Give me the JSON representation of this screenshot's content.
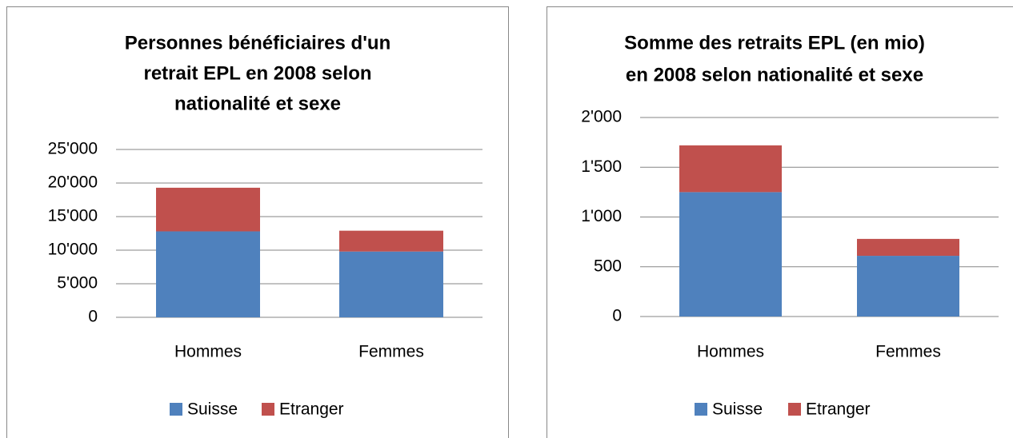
{
  "chart_data": [
    {
      "type": "bar",
      "stacked": true,
      "title": [
        "Personnes bénéficiaires d'un",
        "retrait EPL en 2008 selon",
        "nationalité et sexe"
      ],
      "categories": [
        "Hommes",
        "Femmes"
      ],
      "series": [
        {
          "name": "Suisse",
          "color": "#4f81bd",
          "values": [
            12800,
            9800
          ]
        },
        {
          "name": "Etranger",
          "color": "#c0504d",
          "values": [
            6500,
            3100
          ]
        }
      ],
      "ylim": [
        0,
        25000
      ],
      "yticks": [
        0,
        {
          "value": 5000,
          "label": "5'000"
        },
        {
          "value": 10000,
          "label": "10'000"
        },
        {
          "value": 15000,
          "label": "15'000"
        },
        {
          "value": 20000,
          "label": "20'000"
        },
        {
          "value": 25000,
          "label": "25'000"
        }
      ],
      "grid": true,
      "legend": "bottom"
    },
    {
      "type": "bar",
      "stacked": true,
      "title": [
        "Somme des retraits EPL (en mio)",
        "en 2008 selon nationalité et sexe"
      ],
      "categories": [
        "Hommes",
        "Femmes"
      ],
      "series": [
        {
          "name": "Suisse",
          "color": "#4f81bd",
          "values": [
            1250,
            610
          ]
        },
        {
          "name": "Etranger",
          "color": "#c0504d",
          "values": [
            470,
            170
          ]
        }
      ],
      "ylim": [
        0,
        2000
      ],
      "yticks": [
        0,
        500,
        {
          "value": 1000,
          "label": "1'000"
        },
        {
          "value": 1500,
          "label": "1'500"
        },
        {
          "value": 2000,
          "label": "2'000"
        }
      ],
      "grid": true,
      "legend": "bottom"
    }
  ]
}
